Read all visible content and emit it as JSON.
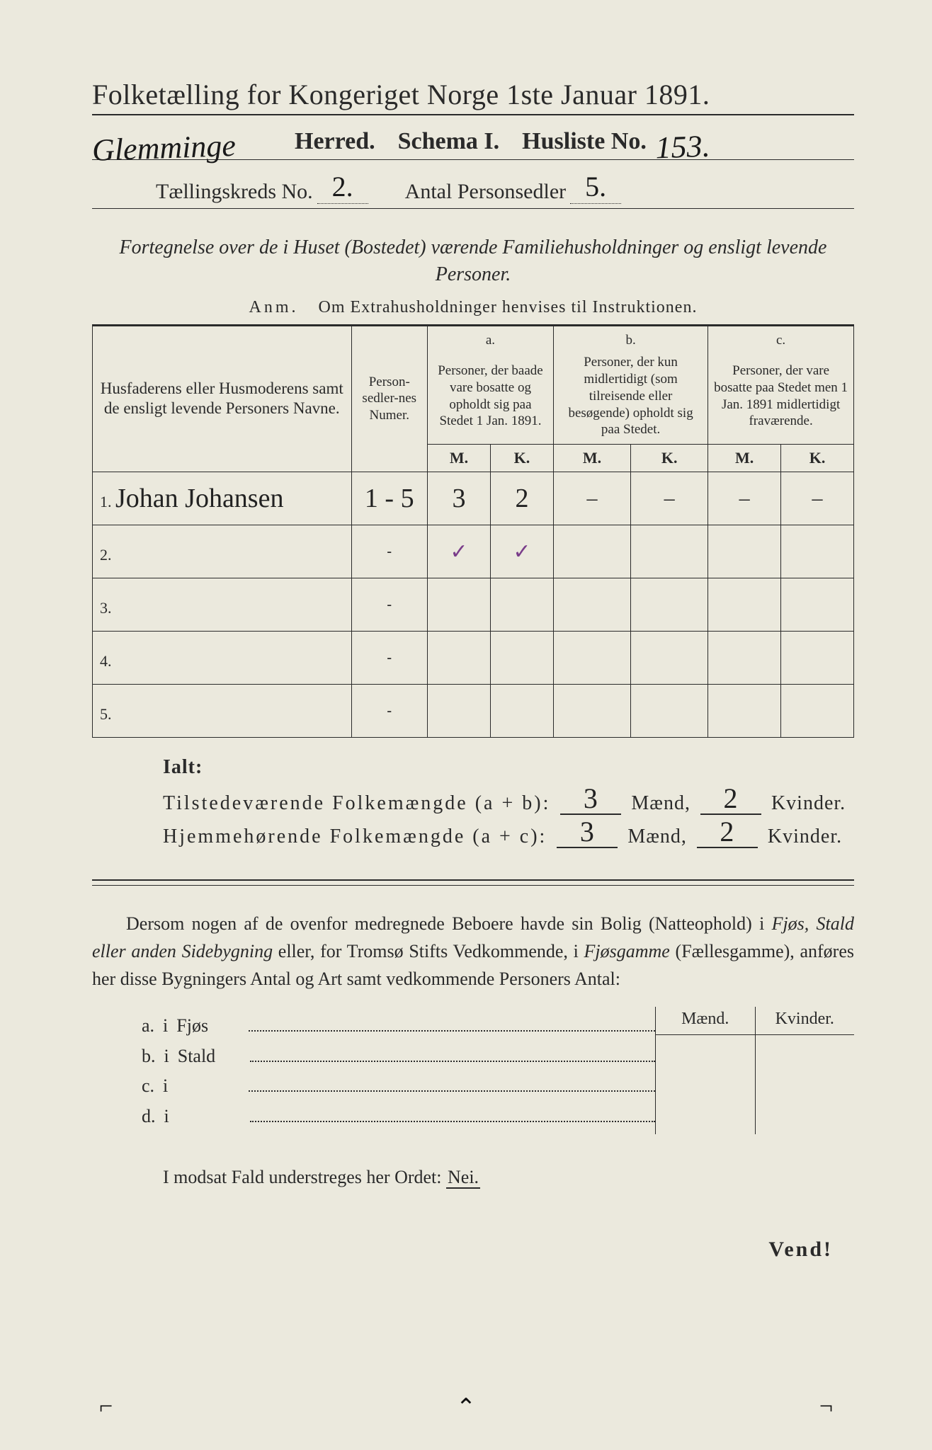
{
  "colors": {
    "paper": "#ebe9dd",
    "ink": "#2a2a2a",
    "handwriting": "#1a1a1a",
    "purple_ink": "#7a3d8a",
    "background": "#3a3a3a"
  },
  "typography": {
    "body_family": "Georgia, Times New Roman, serif",
    "hand_family": "Brush Script MT, cursive",
    "title_size_pt": 30,
    "body_size_pt": 20
  },
  "header": {
    "title_prefix": "Folketælling for Kongeriget Norge 1ste Januar",
    "year": "1891.",
    "herred_handwritten": "Glemminge",
    "herred_label": "Herred.",
    "schema_label": "Schema I.",
    "husliste_label": "Husliste No.",
    "husliste_no": "153.",
    "kreds_label": "Tællingskreds No.",
    "kreds_no": "2.",
    "antal_label": "Antal Personsedler",
    "antal_value": "5."
  },
  "subtitle": "Fortegnelse over de i Huset (Bostedet) værende Familiehusholdninger og ensligt levende Personer.",
  "anm": {
    "prefix": "Anm.",
    "text": "Om Extrahusholdninger henvises til Instruktionen."
  },
  "table": {
    "col_name": "Husfaderens eller Husmoderens samt de ensligt levende Personers Navne.",
    "col_num": "Person-sedler-nes Numer.",
    "col_a_top": "a.",
    "col_a": "Personer, der baade vare bosatte og opholdt sig paa Stedet 1 Jan. 1891.",
    "col_b_top": "b.",
    "col_b": "Personer, der kun midlertidigt (som tilreisende eller besøgende) opholdt sig paa Stedet.",
    "col_c_top": "c.",
    "col_c": "Personer, der vare bosatte paa Stedet men 1 Jan. 1891 midlertidigt fraværende.",
    "mk_m": "M.",
    "mk_k": "K.",
    "rows": [
      {
        "n": "1.",
        "name": "Johan Johansen",
        "num": "1 - 5",
        "aM": "3",
        "aK": "2",
        "bM": "–",
        "bK": "–",
        "cM": "–",
        "cK": "–"
      },
      {
        "n": "2.",
        "name": "",
        "num": "-",
        "aM": "✓",
        "aK": "✓",
        "bM": "",
        "bK": "",
        "cM": "",
        "cK": "",
        "purple": true
      },
      {
        "n": "3.",
        "name": "",
        "num": "-",
        "aM": "",
        "aK": "",
        "bM": "",
        "bK": "",
        "cM": "",
        "cK": ""
      },
      {
        "n": "4.",
        "name": "",
        "num": "-",
        "aM": "",
        "aK": "",
        "bM": "",
        "bK": "",
        "cM": "",
        "cK": ""
      },
      {
        "n": "5.",
        "name": "",
        "num": "-",
        "aM": "",
        "aK": "",
        "bM": "",
        "bK": "",
        "cM": "",
        "cK": ""
      }
    ]
  },
  "totals": {
    "ialt": "Ialt:",
    "line_a_label": "Tilstedeværende Folkemængde (a + b):",
    "line_b_label": "Hjemmehørende Folkemængde (a + c):",
    "maend": "Mænd,",
    "kvinder": "Kvinder.",
    "a_m": "3",
    "a_k": "2",
    "b_m": "3",
    "b_k": "2"
  },
  "paragraph": {
    "p1": "Dersom nogen af de ovenfor medregnede Beboere havde sin Bolig (Natteophold) i ",
    "it1": "Fjøs, Stald eller anden Sidebygning",
    "p2": " eller, for Tromsø Stifts Vedkommende, i ",
    "it2": "Fjøsgamme",
    "p3": " (Fællesgamme), anføres her disse Bygningers Antal og Art samt vedkommende Personers Antal:"
  },
  "sidebygning": {
    "head_m": "Mænd.",
    "head_k": "Kvinder.",
    "rows": [
      {
        "k": "a.",
        "i": "i",
        "label": "Fjøs"
      },
      {
        "k": "b.",
        "i": "i",
        "label": "Stald"
      },
      {
        "k": "c.",
        "i": "i",
        "label": ""
      },
      {
        "k": "d.",
        "i": "i",
        "label": ""
      }
    ]
  },
  "modsat": "I modsat Fald understreges her Ordet:",
  "nei": "Nei.",
  "vend": "Vend!"
}
